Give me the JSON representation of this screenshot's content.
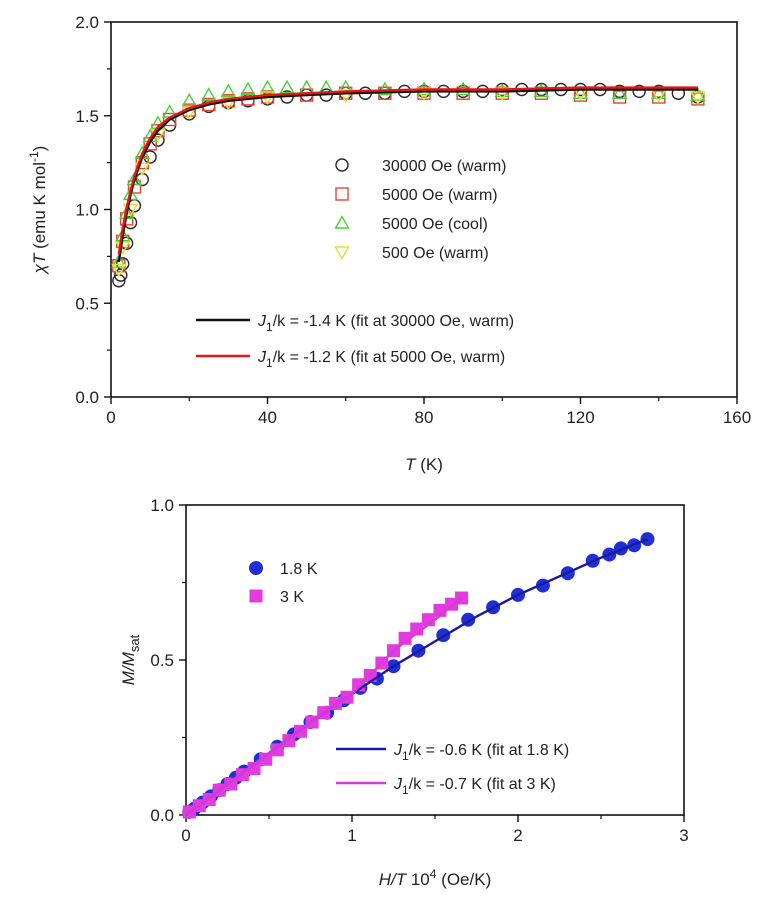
{
  "chart_data": [
    {
      "type": "scatter",
      "xlim": [
        0,
        160
      ],
      "ylim": [
        0,
        2.0
      ],
      "xticks": [
        "0",
        "40",
        "80",
        "120",
        "160"
      ],
      "yticks": [
        "0.0",
        "0.5",
        "1.0",
        "1.5",
        "2.0"
      ],
      "xlabel": {
        "var": "T",
        "unit": " (K)"
      },
      "ylabel": {
        "var": "χT",
        "unit": " (emu K mol",
        "sup": "-1",
        "close": ")"
      },
      "grid": false,
      "legend_position": "center-right",
      "series": [
        {
          "name": "30000 Oe (warm)",
          "marker": "circle",
          "color": "#2a2a2a",
          "x": [
            2,
            2.5,
            3,
            4,
            5,
            6,
            8,
            10,
            12,
            15,
            20,
            25,
            30,
            35,
            40,
            45,
            50,
            55,
            60,
            65,
            70,
            75,
            80,
            85,
            90,
            95,
            100,
            105,
            110,
            115,
            120,
            125,
            130,
            135,
            140,
            145,
            150
          ],
          "y": [
            0.62,
            0.65,
            0.71,
            0.82,
            0.93,
            1.02,
            1.16,
            1.28,
            1.37,
            1.45,
            1.51,
            1.55,
            1.57,
            1.58,
            1.59,
            1.6,
            1.61,
            1.61,
            1.62,
            1.62,
            1.62,
            1.63,
            1.63,
            1.63,
            1.63,
            1.63,
            1.64,
            1.64,
            1.64,
            1.64,
            1.64,
            1.64,
            1.63,
            1.63,
            1.63,
            1.62,
            1.6
          ]
        },
        {
          "name": "5000 Oe (warm)",
          "marker": "square",
          "color": "#e3443a",
          "x": [
            2,
            3,
            4,
            6,
            8,
            10,
            12,
            15,
            20,
            25,
            30,
            35,
            40,
            50,
            60,
            70,
            80,
            90,
            100,
            110,
            120,
            130,
            140,
            150
          ],
          "y": [
            0.7,
            0.83,
            0.95,
            1.12,
            1.25,
            1.35,
            1.42,
            1.48,
            1.53,
            1.56,
            1.58,
            1.59,
            1.6,
            1.61,
            1.62,
            1.62,
            1.62,
            1.62,
            1.62,
            1.62,
            1.61,
            1.6,
            1.6,
            1.59
          ]
        },
        {
          "name": "5000 Oe (cool)",
          "marker": "triangle-up",
          "color": "#4ccf3c",
          "x": [
            2,
            3,
            4,
            5,
            6,
            8,
            10,
            12,
            15,
            20,
            25,
            30,
            35,
            40,
            45,
            50,
            55,
            60,
            70,
            80,
            90,
            100,
            110,
            120,
            130,
            140,
            150
          ],
          "y": [
            0.72,
            0.86,
            0.98,
            1.08,
            1.16,
            1.3,
            1.39,
            1.46,
            1.52,
            1.58,
            1.61,
            1.63,
            1.64,
            1.65,
            1.65,
            1.65,
            1.65,
            1.65,
            1.64,
            1.64,
            1.64,
            1.63,
            1.63,
            1.62,
            1.62,
            1.62,
            1.61
          ]
        },
        {
          "name": "500 Oe (warm)",
          "marker": "triangle-down",
          "color": "#e0e030",
          "x": [
            2,
            3,
            5,
            8,
            12,
            20,
            30,
            40,
            60,
            80,
            100,
            120,
            140,
            150
          ],
          "y": [
            0.68,
            0.8,
            1.0,
            1.22,
            1.4,
            1.52,
            1.57,
            1.6,
            1.61,
            1.62,
            1.62,
            1.62,
            1.61,
            1.6
          ]
        }
      ],
      "fits": [
        {
          "label": {
            "var": "J",
            "sub": "1",
            "rest": "/k = -1.4 K (fit at 30000 Oe, warm)"
          },
          "color": "#111111",
          "x": [
            2,
            3,
            4,
            5,
            6,
            8,
            10,
            12,
            15,
            20,
            25,
            30,
            40,
            50,
            60,
            80,
            100,
            120,
            150
          ],
          "y": [
            0.72,
            0.86,
            0.98,
            1.08,
            1.16,
            1.28,
            1.36,
            1.42,
            1.48,
            1.53,
            1.56,
            1.58,
            1.6,
            1.61,
            1.62,
            1.63,
            1.63,
            1.64,
            1.64
          ]
        },
        {
          "label": {
            "var": "J",
            "sub": "1",
            "rest": "/k = -1.2 K (fit at 5000 Oe, warm)"
          },
          "color": "#e01818",
          "x": [
            2,
            3,
            4,
            5,
            6,
            8,
            10,
            12,
            15,
            20,
            25,
            30,
            40,
            50,
            60,
            80,
            100,
            120,
            150
          ],
          "y": [
            0.76,
            0.9,
            1.01,
            1.1,
            1.18,
            1.3,
            1.38,
            1.44,
            1.49,
            1.54,
            1.57,
            1.59,
            1.61,
            1.62,
            1.63,
            1.64,
            1.64,
            1.65,
            1.65
          ]
        }
      ]
    },
    {
      "type": "scatter",
      "xlim": [
        0,
        3
      ],
      "ylim": [
        0,
        1.0
      ],
      "xticks": [
        "0",
        "1",
        "2",
        "3"
      ],
      "yticks": [
        "0.0",
        "0.5",
        "1.0"
      ],
      "xlabel": {
        "var": "H/T",
        "mid": " 10",
        "sup": "4",
        "unit": " (Oe/K)"
      },
      "ylabel": {
        "var": "M/M",
        "sub": "sat"
      },
      "grid": false,
      "legend_position": "top-left",
      "series": [
        {
          "name": "1.8 K",
          "marker": "circle-filled",
          "color": "#1f2fd6",
          "x": [
            0.02,
            0.05,
            0.1,
            0.15,
            0.2,
            0.25,
            0.3,
            0.35,
            0.45,
            0.55,
            0.65,
            0.75,
            0.85,
            0.95,
            1.05,
            1.15,
            1.25,
            1.4,
            1.55,
            1.7,
            1.85,
            2.0,
            2.15,
            2.3,
            2.45,
            2.55,
            2.62,
            2.7,
            2.78
          ],
          "y": [
            0.01,
            0.02,
            0.04,
            0.06,
            0.08,
            0.1,
            0.12,
            0.14,
            0.18,
            0.22,
            0.26,
            0.3,
            0.33,
            0.37,
            0.41,
            0.44,
            0.48,
            0.53,
            0.58,
            0.63,
            0.67,
            0.71,
            0.74,
            0.78,
            0.82,
            0.84,
            0.86,
            0.87,
            0.89
          ]
        },
        {
          "name": "3 K",
          "marker": "square-filled",
          "color": "#e23ce0",
          "x": [
            0.02,
            0.08,
            0.14,
            0.2,
            0.27,
            0.34,
            0.41,
            0.48,
            0.55,
            0.62,
            0.69,
            0.76,
            0.83,
            0.9,
            0.97,
            1.04,
            1.11,
            1.18,
            1.25,
            1.32,
            1.39,
            1.46,
            1.53,
            1.6,
            1.66
          ],
          "y": [
            0.01,
            0.03,
            0.05,
            0.08,
            0.1,
            0.13,
            0.15,
            0.18,
            0.21,
            0.24,
            0.27,
            0.3,
            0.33,
            0.36,
            0.38,
            0.42,
            0.45,
            0.49,
            0.53,
            0.57,
            0.6,
            0.63,
            0.66,
            0.68,
            0.7
          ]
        }
      ],
      "fits": [
        {
          "label": {
            "var": "J",
            "sub": "1",
            "rest": "/k = -0.6 K (fit at 1.8 K)"
          },
          "color": "#1a1a9a",
          "x": [
            0,
            0.25,
            0.5,
            0.75,
            1.0,
            1.25,
            1.5,
            1.75,
            2.0,
            2.25,
            2.5,
            2.78
          ],
          "y": [
            0,
            0.1,
            0.2,
            0.3,
            0.39,
            0.48,
            0.56,
            0.64,
            0.71,
            0.77,
            0.83,
            0.89
          ]
        },
        {
          "label": {
            "var": "J",
            "sub": "1",
            "rest": "/k = -0.7 K (fit at 3 K)"
          },
          "color": "#d83ad8",
          "x": [
            0,
            0.25,
            0.5,
            0.75,
            1.0,
            1.25,
            1.5,
            1.66
          ],
          "y": [
            0,
            0.1,
            0.2,
            0.3,
            0.39,
            0.53,
            0.63,
            0.7
          ]
        }
      ]
    }
  ]
}
